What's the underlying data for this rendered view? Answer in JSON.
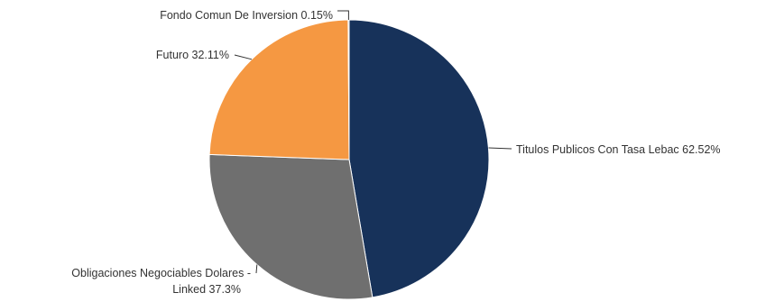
{
  "chart_data": {
    "type": "pie",
    "title": "",
    "slices": [
      {
        "name": "Titulos Publicos Con Tasa Lebac",
        "value": 62.52,
        "label": "Titulos Publicos Con Tasa Lebac 62.52%",
        "color": "#17325a"
      },
      {
        "name": "Obligaciones Negociables Dolares - Linked",
        "value": 37.3,
        "label_lines": [
          "Obligaciones Negociables Dolares -",
          "Linked 37.3%"
        ],
        "color": "#6f6f6f"
      },
      {
        "name": "Futuro",
        "value": 32.11,
        "label": "Futuro 32.11%",
        "color": "#f59842"
      },
      {
        "name": "Fondo Comun De Inversion",
        "value": 0.15,
        "label": "Fondo Comun De Inversion 0.15%",
        "color": "#3f73b3"
      }
    ],
    "start_angle": "top",
    "direction": "clockwise",
    "legend": "none",
    "labels": "outside with leader lines"
  }
}
